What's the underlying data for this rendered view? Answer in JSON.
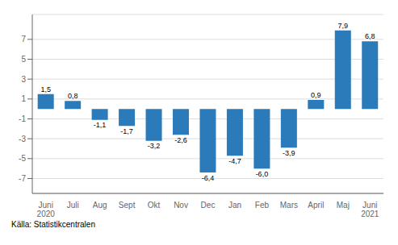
{
  "chart_data": {
    "type": "bar",
    "categories": [
      "Juni\n2020",
      "Juli",
      "Aug",
      "Sept",
      "Okt",
      "Nov",
      "Dec",
      "Jan",
      "Feb",
      "Mars",
      "April",
      "Maj",
      "Juni\n2021"
    ],
    "values": [
      1.5,
      0.8,
      -1.1,
      -1.7,
      -3.2,
      -2.6,
      -6.4,
      -4.7,
      -6.0,
      -3.9,
      0.9,
      7.9,
      6.8
    ],
    "value_labels": [
      "1,5",
      "0,8",
      "-1,1",
      "-1,7",
      "-3,2",
      "-2,6",
      "-6,4",
      "-4,7",
      "-6,0",
      "-3,9",
      "0,9",
      "7,9",
      "6,8"
    ],
    "data_labels": true,
    "color": "#2b7bba",
    "ylim": [
      -8.5,
      9.5
    ],
    "yticks": [
      -7,
      -5,
      -3,
      -1,
      1,
      3,
      5,
      7
    ],
    "grid": true,
    "annotations": [
      "Källa: Statistikcentralen"
    ]
  }
}
